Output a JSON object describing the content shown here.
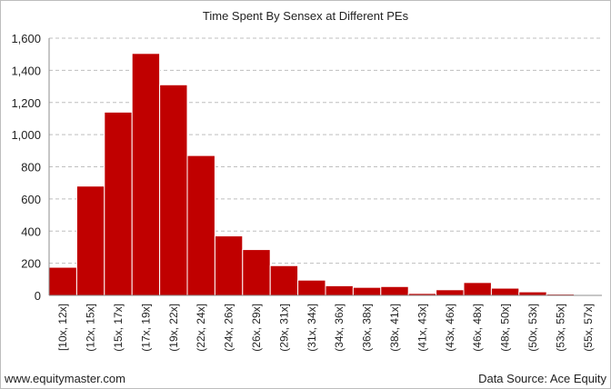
{
  "chart_data": {
    "type": "bar",
    "title": "Time Spent By Sensex at Different PEs",
    "xlabel": "",
    "ylabel": "",
    "ylim": [
      0,
      1600
    ],
    "yticks": [
      0,
      200,
      400,
      600,
      800,
      1000,
      1200,
      1400,
      1600
    ],
    "ytick_labels": [
      "0",
      "200",
      "400",
      "600",
      "800",
      "1,000",
      "1,200",
      "1,400",
      "1,600"
    ],
    "grid": true,
    "legend": "none",
    "bar_color": "#c00000",
    "categories": [
      "[10x, 12x]",
      "(12x, 15x]",
      "(15x, 17x]",
      "(17x, 19x]",
      "(19x, 22x]",
      "(22x, 24x]",
      "(24x, 26x]",
      "(26x, 29x]",
      "(29x, 31x]",
      "(31x, 34x]",
      "(34x, 36x]",
      "(36x, 38x]",
      "(38x, 41x]",
      "(41x, 43x]",
      "(43x, 46x]",
      "(46x, 48x]",
      "(48x, 50x]",
      "(50x, 53x]",
      "(53x, 55x]",
      "(55x, 57x]"
    ],
    "values": [
      175,
      680,
      1140,
      1505,
      1310,
      870,
      370,
      285,
      185,
      95,
      60,
      50,
      55,
      12,
      35,
      80,
      45,
      22,
      8,
      2
    ]
  },
  "footer": {
    "left": "www.equitymaster.com",
    "right": "Data Source: Ace Equity"
  }
}
